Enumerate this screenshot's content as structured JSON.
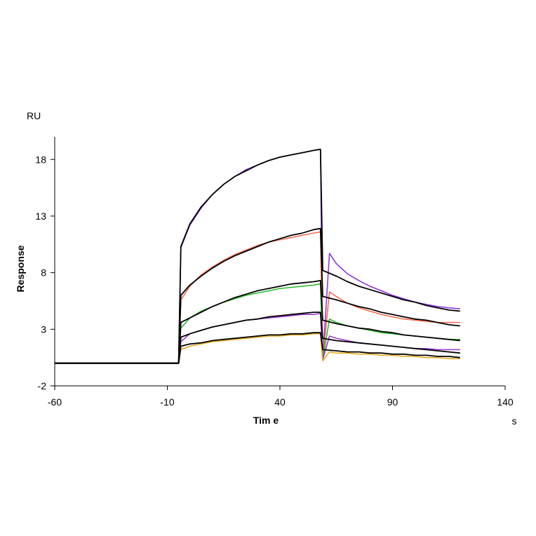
{
  "chart_data": {
    "type": "line",
    "xlabel": "Tim e",
    "ylabel": "Response",
    "x_unit": "s",
    "y_unit": "RU",
    "xlim": [
      -60,
      140
    ],
    "ylim": [
      -2,
      20
    ],
    "x_ticks": [
      -60,
      -10,
      40,
      90,
      140
    ],
    "y_ticks": [
      -2,
      3,
      8,
      13,
      18
    ],
    "grid": false,
    "legend": "none",
    "series": [
      {
        "color": "#8a2be2",
        "points": [
          [
            -60,
            0
          ],
          [
            -5,
            0
          ],
          [
            -4,
            10.2
          ],
          [
            0,
            12.2
          ],
          [
            5,
            13.7
          ],
          [
            10,
            14.9
          ],
          [
            15,
            15.8
          ],
          [
            20,
            16.5
          ],
          [
            25,
            17.1
          ],
          [
            30,
            17.5
          ],
          [
            35,
            17.9
          ],
          [
            40,
            18.2
          ],
          [
            45,
            18.4
          ],
          [
            50,
            18.6
          ],
          [
            55,
            18.8
          ],
          [
            58,
            18.9
          ],
          [
            59,
            0.3
          ],
          [
            62,
            9.7
          ],
          [
            65,
            8.8
          ],
          [
            70,
            7.9
          ],
          [
            75,
            7.3
          ],
          [
            80,
            6.8
          ],
          [
            85,
            6.4
          ],
          [
            90,
            6.0
          ],
          [
            95,
            5.7
          ],
          [
            100,
            5.4
          ],
          [
            105,
            5.2
          ],
          [
            110,
            5.0
          ],
          [
            115,
            4.9
          ],
          [
            120,
            4.8
          ]
        ],
        "fit": [
          [
            -60,
            0
          ],
          [
            -5,
            0
          ],
          [
            -4,
            10.3
          ],
          [
            0,
            12.3
          ],
          [
            5,
            13.8
          ],
          [
            10,
            14.9
          ],
          [
            15,
            15.8
          ],
          [
            20,
            16.5
          ],
          [
            25,
            17.0
          ],
          [
            30,
            17.5
          ],
          [
            35,
            17.9
          ],
          [
            40,
            18.2
          ],
          [
            45,
            18.4
          ],
          [
            50,
            18.6
          ],
          [
            55,
            18.8
          ],
          [
            58,
            18.9
          ],
          [
            59,
            8.2
          ],
          [
            65,
            7.7
          ],
          [
            70,
            7.2
          ],
          [
            75,
            6.8
          ],
          [
            80,
            6.5
          ],
          [
            85,
            6.2
          ],
          [
            90,
            5.9
          ],
          [
            95,
            5.6
          ],
          [
            100,
            5.4
          ],
          [
            105,
            5.1
          ],
          [
            110,
            4.9
          ],
          [
            115,
            4.7
          ],
          [
            120,
            4.6
          ]
        ]
      },
      {
        "color": "#ff6347",
        "points": [
          [
            -60,
            0
          ],
          [
            -5,
            0
          ],
          [
            -4,
            5.6
          ],
          [
            0,
            6.8
          ],
          [
            5,
            7.8
          ],
          [
            10,
            8.5
          ],
          [
            15,
            9.1
          ],
          [
            20,
            9.6
          ],
          [
            25,
            10.0
          ],
          [
            30,
            10.4
          ],
          [
            35,
            10.7
          ],
          [
            40,
            10.9
          ],
          [
            45,
            11.1
          ],
          [
            50,
            11.3
          ],
          [
            55,
            11.5
          ],
          [
            58,
            11.6
          ],
          [
            59,
            0.3
          ],
          [
            62,
            6.3
          ],
          [
            65,
            5.9
          ],
          [
            70,
            5.3
          ],
          [
            75,
            4.9
          ],
          [
            80,
            4.6
          ],
          [
            85,
            4.3
          ],
          [
            90,
            4.1
          ],
          [
            95,
            3.9
          ],
          [
            100,
            3.8
          ],
          [
            105,
            3.7
          ],
          [
            110,
            3.6
          ],
          [
            115,
            3.6
          ],
          [
            120,
            3.6
          ]
        ],
        "fit": [
          [
            -60,
            0
          ],
          [
            -5,
            0
          ],
          [
            -4,
            6.0
          ],
          [
            0,
            6.9
          ],
          [
            5,
            7.7
          ],
          [
            10,
            8.4
          ],
          [
            15,
            9.0
          ],
          [
            20,
            9.5
          ],
          [
            25,
            9.9
          ],
          [
            30,
            10.3
          ],
          [
            35,
            10.7
          ],
          [
            40,
            11.0
          ],
          [
            45,
            11.3
          ],
          [
            50,
            11.5
          ],
          [
            55,
            11.8
          ],
          [
            58,
            11.9
          ],
          [
            59,
            5.9
          ],
          [
            65,
            5.6
          ],
          [
            70,
            5.3
          ],
          [
            75,
            5.0
          ],
          [
            80,
            4.8
          ],
          [
            85,
            4.5
          ],
          [
            90,
            4.3
          ],
          [
            95,
            4.1
          ],
          [
            100,
            3.9
          ],
          [
            105,
            3.8
          ],
          [
            110,
            3.6
          ],
          [
            115,
            3.4
          ],
          [
            120,
            3.3
          ]
        ]
      },
      {
        "color": "#22bb22",
        "points": [
          [
            -60,
            0
          ],
          [
            -5,
            0
          ],
          [
            -4,
            3.1
          ],
          [
            0,
            4.0
          ],
          [
            5,
            4.6
          ],
          [
            10,
            5.0
          ],
          [
            15,
            5.4
          ],
          [
            20,
            5.7
          ],
          [
            25,
            6.0
          ],
          [
            30,
            6.2
          ],
          [
            35,
            6.4
          ],
          [
            40,
            6.6
          ],
          [
            45,
            6.7
          ],
          [
            50,
            6.8
          ],
          [
            55,
            6.9
          ],
          [
            58,
            7.0
          ],
          [
            59,
            0.3
          ],
          [
            62,
            3.9
          ],
          [
            65,
            3.6
          ],
          [
            70,
            3.3
          ],
          [
            75,
            3.1
          ],
          [
            80,
            2.9
          ],
          [
            85,
            2.7
          ],
          [
            90,
            2.6
          ],
          [
            95,
            2.5
          ],
          [
            100,
            2.4
          ],
          [
            105,
            2.3
          ],
          [
            110,
            2.2
          ],
          [
            115,
            2.1
          ],
          [
            120,
            2.1
          ]
        ],
        "fit": [
          [
            -60,
            0
          ],
          [
            -5,
            0
          ],
          [
            -4,
            3.6
          ],
          [
            0,
            4.0
          ],
          [
            5,
            4.5
          ],
          [
            10,
            5.0
          ],
          [
            15,
            5.4
          ],
          [
            20,
            5.8
          ],
          [
            25,
            6.1
          ],
          [
            30,
            6.4
          ],
          [
            35,
            6.6
          ],
          [
            40,
            6.8
          ],
          [
            45,
            7.0
          ],
          [
            50,
            7.1
          ],
          [
            55,
            7.2
          ],
          [
            58,
            7.3
          ],
          [
            59,
            3.8
          ],
          [
            65,
            3.5
          ],
          [
            70,
            3.3
          ],
          [
            75,
            3.1
          ],
          [
            80,
            3.0
          ],
          [
            85,
            2.8
          ],
          [
            90,
            2.7
          ],
          [
            95,
            2.5
          ],
          [
            100,
            2.4
          ],
          [
            105,
            2.3
          ],
          [
            110,
            2.2
          ],
          [
            115,
            2.1
          ],
          [
            120,
            2.0
          ]
        ]
      },
      {
        "color": "#9932cc",
        "points": [
          [
            -60,
            0
          ],
          [
            -5,
            0
          ],
          [
            -4,
            1.9
          ],
          [
            0,
            2.6
          ],
          [
            5,
            2.9
          ],
          [
            10,
            3.2
          ],
          [
            15,
            3.4
          ],
          [
            20,
            3.6
          ],
          [
            25,
            3.8
          ],
          [
            30,
            3.9
          ],
          [
            35,
            4.0
          ],
          [
            40,
            4.1
          ],
          [
            45,
            4.2
          ],
          [
            50,
            4.3
          ],
          [
            55,
            4.3
          ],
          [
            58,
            4.4
          ],
          [
            59,
            0.3
          ],
          [
            62,
            2.4
          ],
          [
            65,
            2.2
          ],
          [
            70,
            2.0
          ],
          [
            75,
            1.8
          ],
          [
            80,
            1.7
          ],
          [
            85,
            1.6
          ],
          [
            90,
            1.5
          ],
          [
            95,
            1.4
          ],
          [
            100,
            1.3
          ],
          [
            105,
            1.3
          ],
          [
            110,
            1.2
          ],
          [
            115,
            1.2
          ],
          [
            120,
            1.2
          ]
        ],
        "fit": [
          [
            -60,
            0
          ],
          [
            -5,
            0
          ],
          [
            -4,
            2.3
          ],
          [
            0,
            2.6
          ],
          [
            5,
            2.9
          ],
          [
            10,
            3.2
          ],
          [
            15,
            3.4
          ],
          [
            20,
            3.6
          ],
          [
            25,
            3.8
          ],
          [
            30,
            3.9
          ],
          [
            35,
            4.1
          ],
          [
            40,
            4.2
          ],
          [
            45,
            4.3
          ],
          [
            50,
            4.4
          ],
          [
            55,
            4.5
          ],
          [
            58,
            4.5
          ],
          [
            59,
            2.2
          ],
          [
            65,
            2.0
          ],
          [
            70,
            1.9
          ],
          [
            75,
            1.8
          ],
          [
            80,
            1.7
          ],
          [
            85,
            1.6
          ],
          [
            90,
            1.5
          ],
          [
            95,
            1.4
          ],
          [
            100,
            1.3
          ],
          [
            105,
            1.2
          ],
          [
            110,
            1.1
          ],
          [
            115,
            1.0
          ],
          [
            120,
            0.9
          ]
        ]
      },
      {
        "color": "#e6a817",
        "points": [
          [
            -60,
            0
          ],
          [
            -5,
            0
          ],
          [
            -4,
            1.2
          ],
          [
            0,
            1.5
          ],
          [
            5,
            1.7
          ],
          [
            10,
            1.9
          ],
          [
            15,
            2.0
          ],
          [
            20,
            2.1
          ],
          [
            25,
            2.2
          ],
          [
            30,
            2.3
          ],
          [
            35,
            2.4
          ],
          [
            40,
            2.4
          ],
          [
            45,
            2.5
          ],
          [
            50,
            2.5
          ],
          [
            55,
            2.6
          ],
          [
            58,
            2.6
          ],
          [
            59,
            0.2
          ],
          [
            62,
            1.0
          ],
          [
            65,
            0.9
          ],
          [
            70,
            0.9
          ],
          [
            75,
            0.8
          ],
          [
            80,
            0.8
          ],
          [
            85,
            0.7
          ],
          [
            90,
            0.7
          ],
          [
            95,
            0.6
          ],
          [
            100,
            0.6
          ],
          [
            105,
            0.5
          ],
          [
            110,
            0.5
          ],
          [
            115,
            0.4
          ],
          [
            120,
            0.4
          ]
        ],
        "fit": [
          [
            -60,
            0
          ],
          [
            -5,
            0
          ],
          [
            -4,
            1.5
          ],
          [
            0,
            1.7
          ],
          [
            5,
            1.8
          ],
          [
            10,
            2.0
          ],
          [
            15,
            2.1
          ],
          [
            20,
            2.2
          ],
          [
            25,
            2.3
          ],
          [
            30,
            2.4
          ],
          [
            35,
            2.5
          ],
          [
            40,
            2.5
          ],
          [
            45,
            2.6
          ],
          [
            50,
            2.6
          ],
          [
            55,
            2.7
          ],
          [
            58,
            2.7
          ],
          [
            59,
            1.2
          ],
          [
            65,
            1.1
          ],
          [
            70,
            1.0
          ],
          [
            75,
            1.0
          ],
          [
            80,
            0.9
          ],
          [
            85,
            0.9
          ],
          [
            90,
            0.8
          ],
          [
            95,
            0.8
          ],
          [
            100,
            0.7
          ],
          [
            105,
            0.7
          ],
          [
            110,
            0.6
          ],
          [
            115,
            0.6
          ],
          [
            120,
            0.5
          ]
        ]
      }
    ]
  }
}
